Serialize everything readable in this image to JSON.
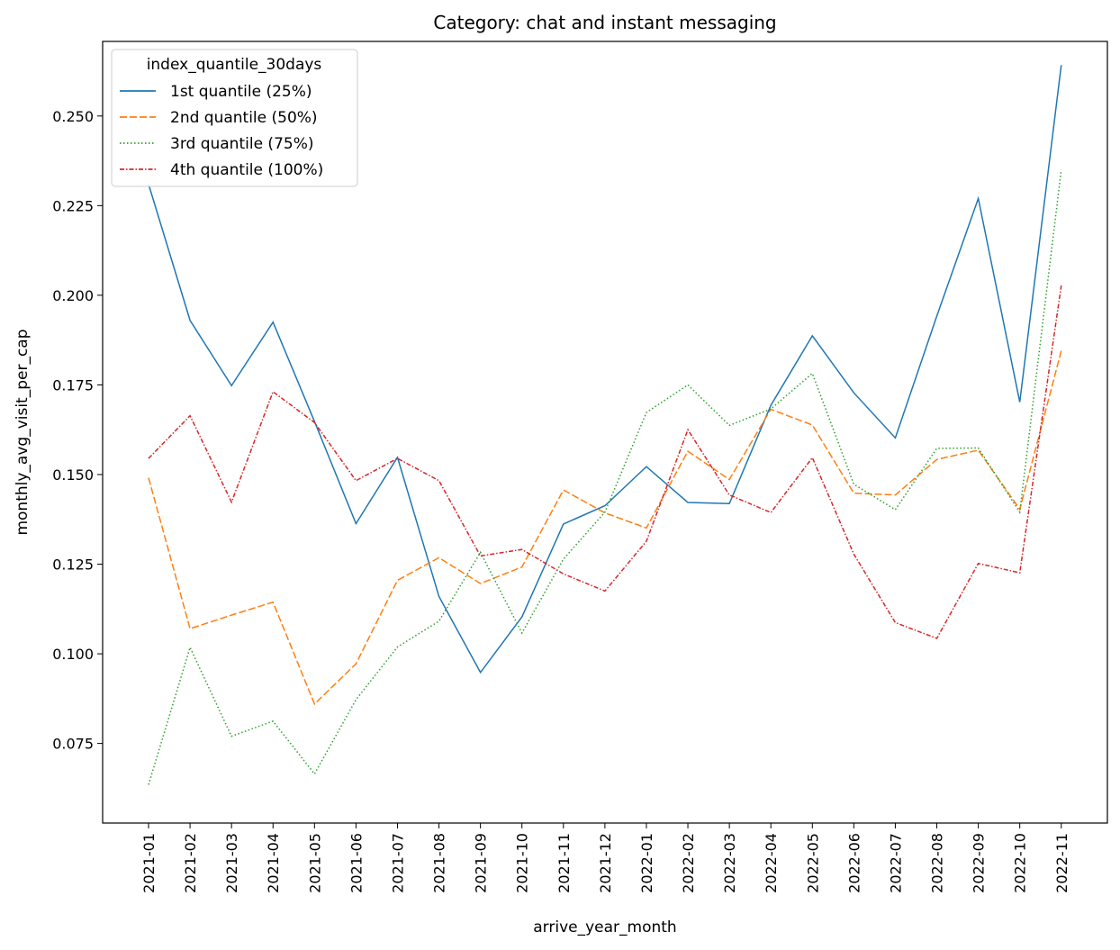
{
  "chart_data": {
    "type": "line",
    "title": "Category: chat and instant messaging",
    "xlabel": "arrive_year_month",
    "ylabel": "monthly_avg_visit_per_cap",
    "x": [
      "2021-01",
      "2021-02",
      "2021-03",
      "2021-04",
      "2021-05",
      "2021-06",
      "2021-07",
      "2021-08",
      "2021-09",
      "2021-10",
      "2021-11",
      "2021-12",
      "2022-01",
      "2022-02",
      "2022-03",
      "2022-04",
      "2022-05",
      "2022-06",
      "2022-07",
      "2022-08",
      "2022-09",
      "2022-10",
      "2022-11"
    ],
    "ylim": [
      0.0528,
      0.2708
    ],
    "yticks": [
      0.075,
      0.1,
      0.125,
      0.15,
      0.175,
      0.2,
      0.225,
      0.25
    ],
    "ytick_labels": [
      "0.075",
      "0.100",
      "0.125",
      "0.150",
      "0.175",
      "0.200",
      "0.225",
      "0.250"
    ],
    "grid": false,
    "legend": {
      "title": "index_quantile_30days",
      "placement": "top-left"
    },
    "series": [
      {
        "name": "1st quantile (25%)",
        "color": "#1f77b4",
        "dash": "solid",
        "values": [
          0.231,
          0.193,
          0.1748,
          0.1925,
          0.1648,
          0.1363,
          0.1548,
          0.116,
          0.0948,
          0.1103,
          0.1362,
          0.1413,
          0.1522,
          0.1422,
          0.1419,
          0.1693,
          0.1887,
          0.1728,
          0.1602,
          0.1942,
          0.227,
          0.1702,
          0.2642
        ]
      },
      {
        "name": "2nd quantile (50%)",
        "color": "#ff7f0e",
        "dash": "dashed",
        "values": [
          0.1491,
          0.107,
          0.1108,
          0.1144,
          0.086,
          0.0972,
          0.1205,
          0.1268,
          0.1196,
          0.1242,
          0.1457,
          0.1393,
          0.1351,
          0.1565,
          0.1486,
          0.1682,
          0.1638,
          0.1448,
          0.1443,
          0.1542,
          0.1568,
          0.1403,
          0.1845
        ]
      },
      {
        "name": "3rd quantile (75%)",
        "color": "#2ca02c",
        "dash": "dotted",
        "values": [
          0.0635,
          0.1018,
          0.077,
          0.0812,
          0.0665,
          0.0872,
          0.1019,
          0.1091,
          0.1283,
          0.1058,
          0.1264,
          0.1395,
          0.1673,
          0.175,
          0.1637,
          0.1683,
          0.1782,
          0.1473,
          0.1402,
          0.1573,
          0.1574,
          0.1395,
          0.235
        ]
      },
      {
        "name": "4th quantile (100%)",
        "color": "#d62728",
        "dash": "dashdot",
        "values": [
          0.1545,
          0.1664,
          0.1423,
          0.1731,
          0.1645,
          0.1483,
          0.1545,
          0.1483,
          0.1273,
          0.1291,
          0.1223,
          0.1175,
          0.1314,
          0.1625,
          0.1443,
          0.1394,
          0.1547,
          0.1278,
          0.1087,
          0.1043,
          0.1252,
          0.1226,
          0.2027
        ]
      }
    ]
  }
}
